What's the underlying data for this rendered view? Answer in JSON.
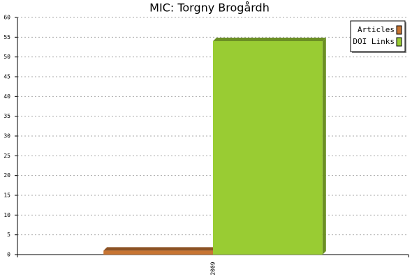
{
  "chart_data": {
    "type": "bar",
    "title": "MIC: Torgny Brogårdh",
    "categories": [
      "2009"
    ],
    "series": [
      {
        "name": "Articles",
        "color": "#c87533",
        "values": [
          1
        ]
      },
      {
        "name": "DOI Links",
        "color": "#99cc33",
        "values": [
          54
        ]
      }
    ],
    "ylim": [
      0,
      60
    ],
    "yticks": [
      0,
      5,
      10,
      15,
      20,
      25,
      30,
      35,
      40,
      45,
      50,
      55,
      60
    ],
    "grid": true,
    "legend": "upper right"
  }
}
